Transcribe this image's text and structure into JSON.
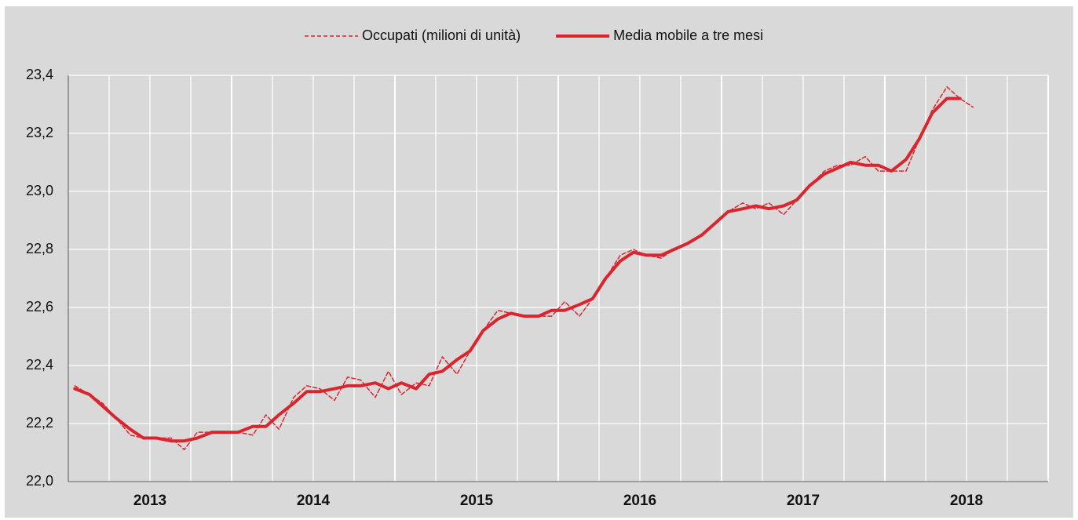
{
  "chart_data": {
    "type": "line",
    "legend": "top",
    "grid": true,
    "xlim": [
      2013,
      2019
    ],
    "xticks": [
      {
        "value": 2013.5,
        "label": "2013"
      },
      {
        "value": 2014.5,
        "label": "2014"
      },
      {
        "value": 2015.5,
        "label": "2015"
      },
      {
        "value": 2016.5,
        "label": "2016"
      },
      {
        "value": 2017.5,
        "label": "2017"
      },
      {
        "value": 2018.5,
        "label": "2018"
      }
    ],
    "xgrid": [
      2013.25,
      2013.5,
      2013.75,
      2014,
      2014.25,
      2014.5,
      2014.75,
      2015,
      2015.25,
      2015.5,
      2015.75,
      2016,
      2016.25,
      2016.5,
      2016.75,
      2017,
      2017.25,
      2017.5,
      2017.75,
      2018,
      2018.25,
      2018.5,
      2018.75,
      2019
    ],
    "ylim": [
      22.0,
      23.4
    ],
    "yticks": [
      {
        "value": 22.0,
        "label": "22,0"
      },
      {
        "value": 22.2,
        "label": "22,2"
      },
      {
        "value": 22.4,
        "label": "22,4"
      },
      {
        "value": 22.6,
        "label": "22,6"
      },
      {
        "value": 22.8,
        "label": "22,8"
      },
      {
        "value": 23.0,
        "label": "23,0"
      },
      {
        "value": 23.2,
        "label": "23,2"
      },
      {
        "value": 23.4,
        "label": "23,4"
      }
    ],
    "x": [
      2013.04,
      2013.13,
      2013.21,
      2013.29,
      2013.38,
      2013.46,
      2013.54,
      2013.63,
      2013.71,
      2013.79,
      2013.88,
      2013.96,
      2014.04,
      2014.13,
      2014.21,
      2014.29,
      2014.38,
      2014.46,
      2014.54,
      2014.63,
      2014.71,
      2014.79,
      2014.88,
      2014.96,
      2015.04,
      2015.13,
      2015.21,
      2015.29,
      2015.38,
      2015.46,
      2015.54,
      2015.63,
      2015.71,
      2015.79,
      2015.88,
      2015.96,
      2016.04,
      2016.13,
      2016.21,
      2016.29,
      2016.38,
      2016.46,
      2016.54,
      2016.63,
      2016.71,
      2016.79,
      2016.88,
      2016.96,
      2017.04,
      2017.13,
      2017.21,
      2017.29,
      2017.38,
      2017.46,
      2017.54,
      2017.63,
      2017.71,
      2017.79,
      2017.88,
      2017.96,
      2018.04,
      2018.13,
      2018.21,
      2018.29,
      2018.38,
      2018.46,
      2018.54
    ],
    "series": [
      {
        "name": "Occupati (milioni di unità)",
        "color": "#d9262e",
        "dashed": true,
        "values": [
          22.33,
          22.3,
          22.27,
          22.22,
          22.16,
          22.15,
          22.15,
          22.15,
          22.11,
          22.17,
          22.17,
          22.17,
          22.17,
          22.16,
          22.23,
          22.18,
          22.29,
          22.33,
          22.32,
          22.28,
          22.36,
          22.35,
          22.29,
          22.38,
          22.3,
          22.34,
          22.33,
          22.43,
          22.37,
          22.45,
          22.52,
          22.59,
          22.58,
          22.57,
          22.57,
          22.57,
          22.62,
          22.57,
          22.63,
          22.7,
          22.78,
          22.8,
          22.78,
          22.77,
          22.8,
          22.82,
          22.85,
          22.89,
          22.93,
          22.96,
          22.94,
          22.96,
          22.92,
          22.97,
          23.02,
          23.07,
          23.09,
          23.09,
          23.12,
          23.07,
          23.07,
          23.07,
          23.18,
          23.28,
          23.36,
          23.32,
          23.29
        ]
      },
      {
        "name": "Media mobile a tre mesi",
        "color": "#d9262e",
        "dashed": false,
        "values": [
          22.32,
          22.3,
          22.26,
          22.22,
          22.18,
          22.15,
          22.15,
          22.14,
          22.14,
          22.15,
          22.17,
          22.17,
          22.17,
          22.19,
          22.19,
          22.23,
          22.27,
          22.31,
          22.31,
          22.32,
          22.33,
          22.33,
          22.34,
          22.32,
          22.34,
          22.32,
          22.37,
          22.38,
          22.42,
          22.45,
          22.52,
          22.56,
          22.58,
          22.57,
          22.57,
          22.59,
          22.59,
          22.61,
          22.63,
          22.7,
          22.76,
          22.79,
          22.78,
          22.78,
          22.8,
          22.82,
          22.85,
          22.89,
          22.93,
          22.94,
          22.95,
          22.94,
          22.95,
          22.97,
          23.02,
          23.06,
          23.08,
          23.1,
          23.09,
          23.09,
          23.07,
          23.11,
          23.18,
          23.27,
          23.32,
          23.32,
          null
        ]
      }
    ]
  }
}
